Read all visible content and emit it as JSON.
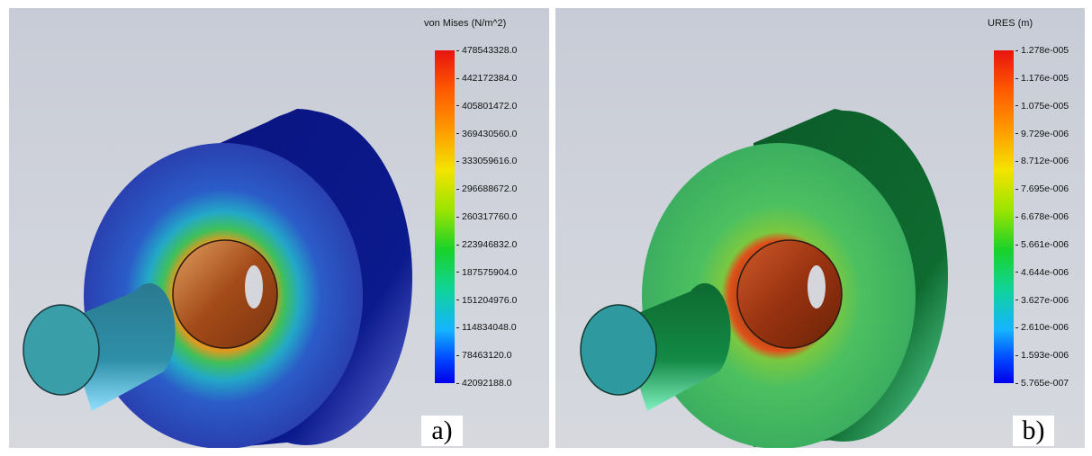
{
  "panels": [
    {
      "id": "a",
      "legend_title": "von Mises (N/m^2)",
      "ticks": [
        "478543328.0",
        "442172384.0",
        "405801472.0",
        "369430560.0",
        "333059616.0",
        "296688672.0",
        "260317760.0",
        "223946832.0",
        "187575904.0",
        "151204976.0",
        "114834048.0",
        "78463120.0",
        "42092188.0"
      ],
      "label": "a)",
      "colors": {
        "outer_face": "#1f3fb8",
        "side": "#0a137a",
        "shaft": "#2e8a9a",
        "hot": "#c05a1a"
      }
    },
    {
      "id": "b",
      "legend_title": "URES (m)",
      "ticks": [
        "1.278e-005",
        "1.176e-005",
        "1.075e-005",
        "9.729e-006",
        "8.712e-006",
        "7.695e-006",
        "6.678e-006",
        "5.661e-006",
        "4.644e-006",
        "3.627e-006",
        "2.610e-006",
        "1.593e-006",
        "5.765e-007"
      ],
      "label": "b)",
      "colors": {
        "outer_face": "#35b055",
        "side": "#0d6b2e",
        "shaft": "#2d8f6a",
        "hot": "#a8401a"
      }
    }
  ]
}
